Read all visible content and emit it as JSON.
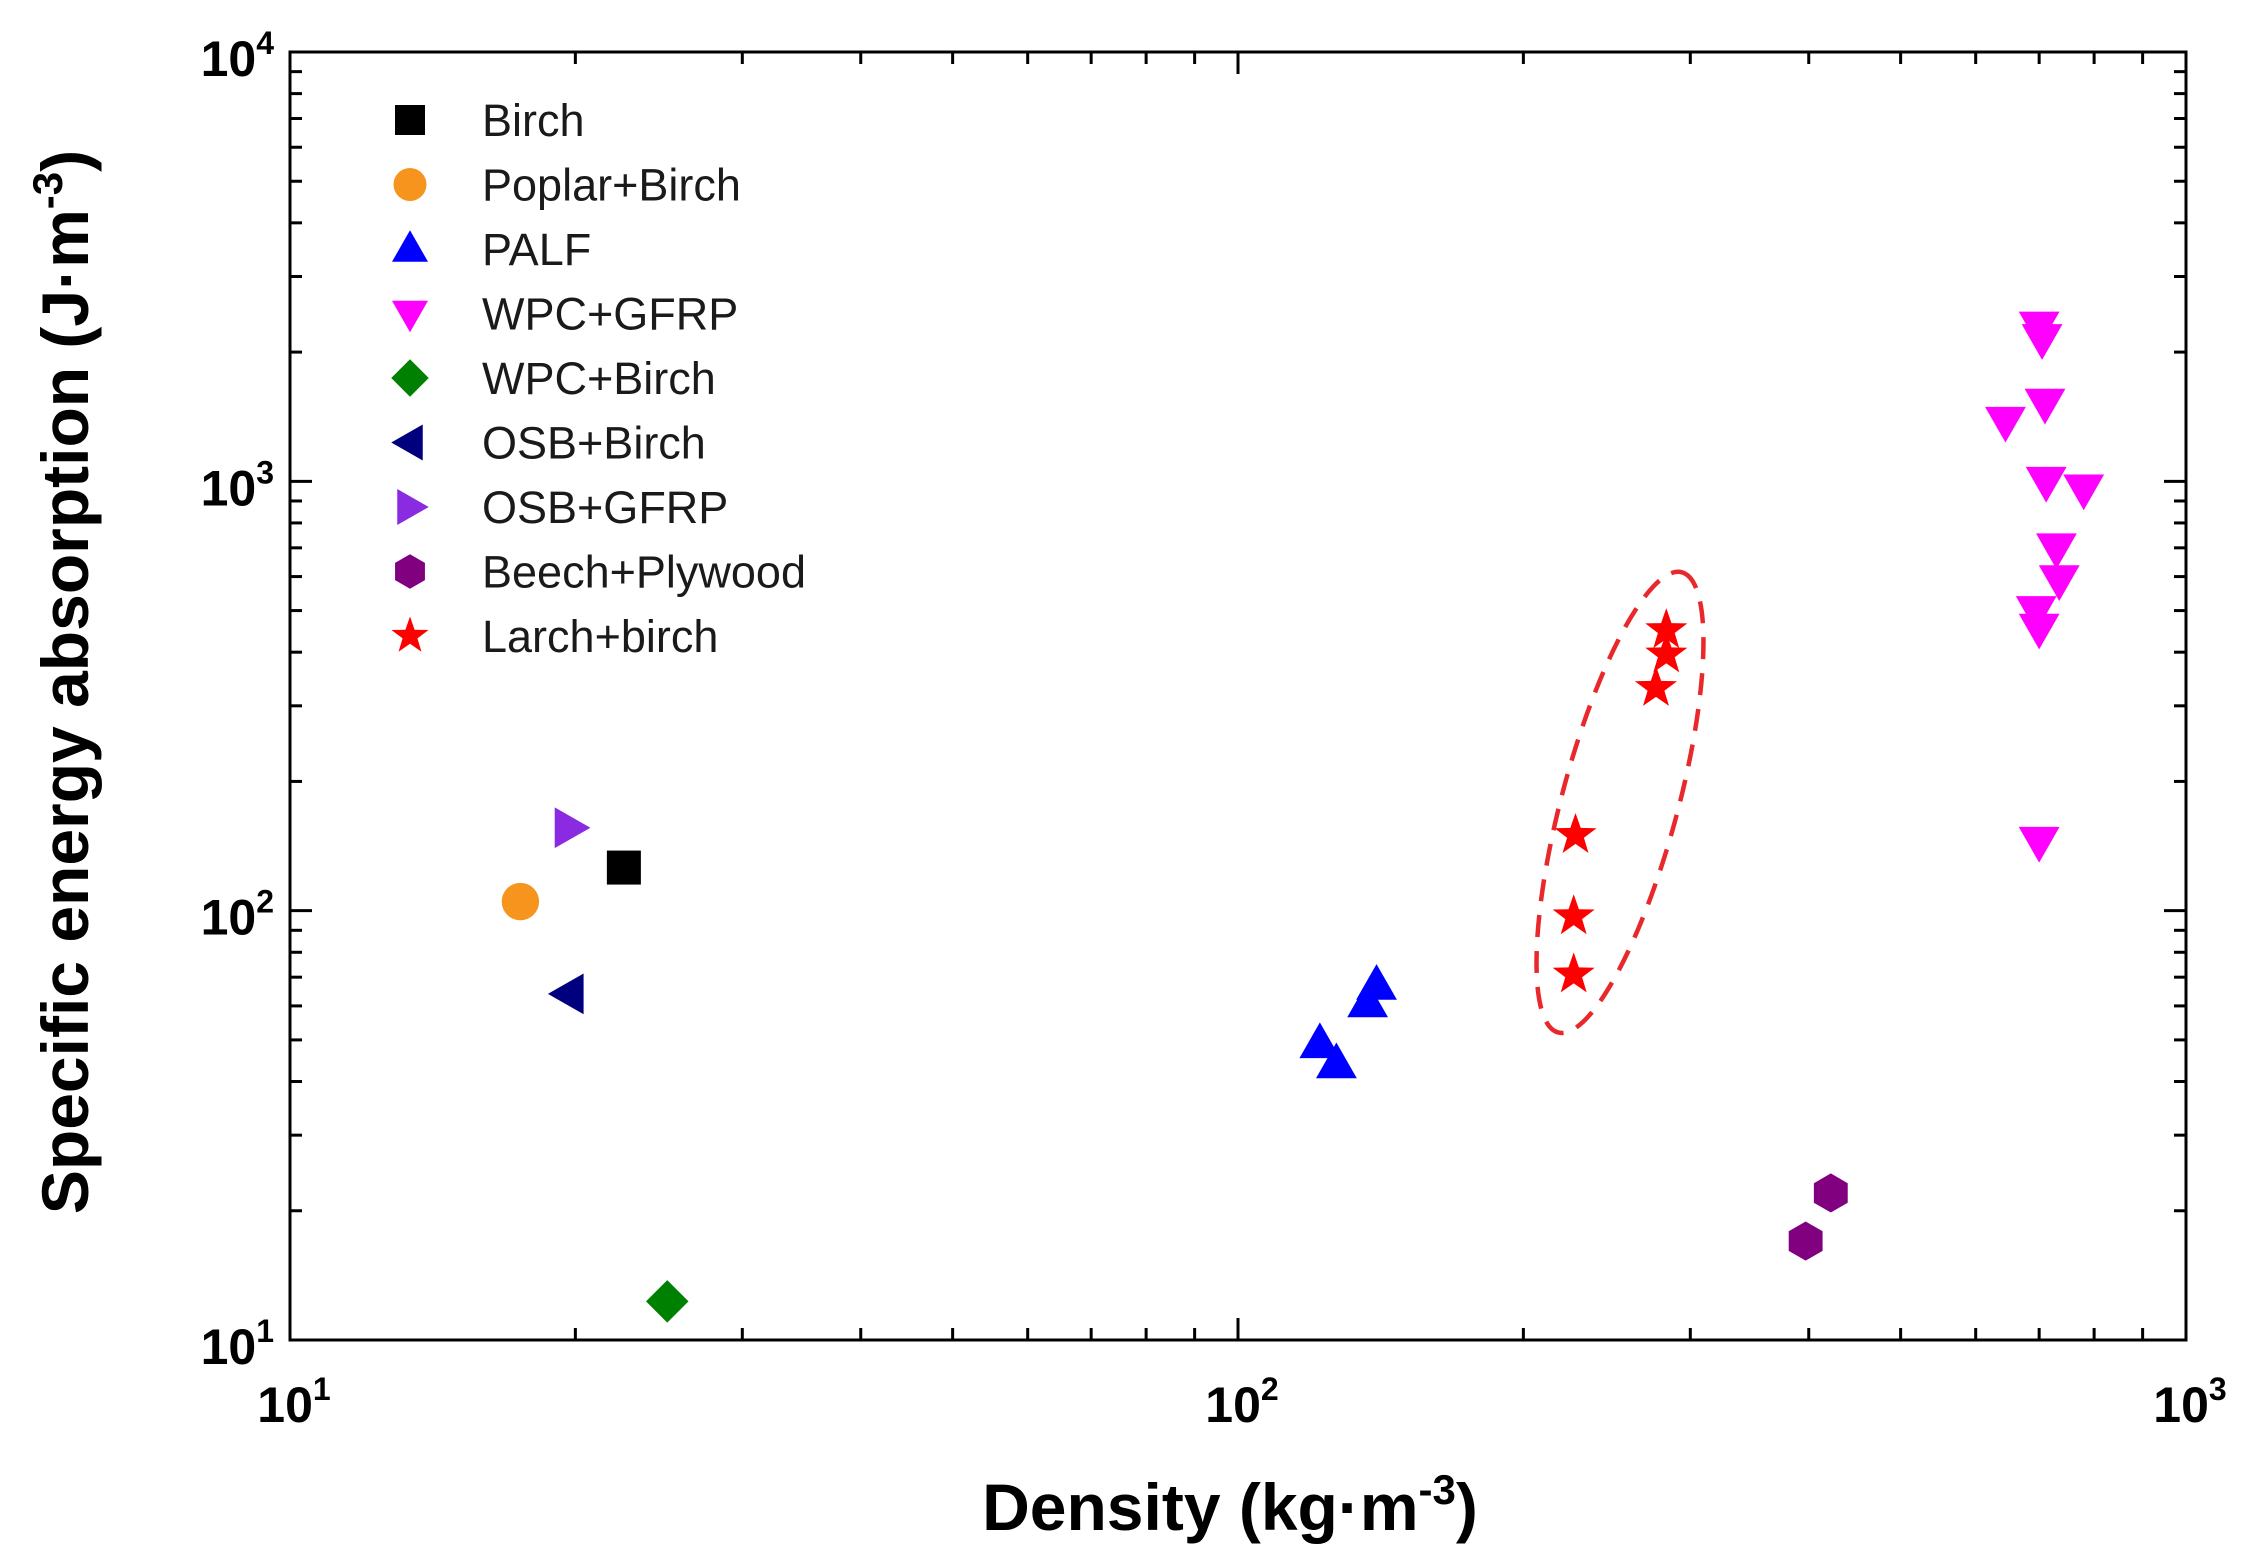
{
  "chart_data": {
    "type": "scatter",
    "xscale": "log",
    "yscale": "log",
    "xlim": [
      10,
      1000
    ],
    "ylim": [
      10,
      10000
    ],
    "xlabel": {
      "main": "Density (kg·m",
      "sup": "-3",
      "close": ")"
    },
    "ylabel": {
      "main": "Specific energy absorption (J·m",
      "sup": "-3",
      "close": ")"
    },
    "x_ticks": [
      {
        "value": 10,
        "base": "10",
        "exp": "1"
      },
      {
        "value": 100,
        "base": "10",
        "exp": "2"
      },
      {
        "value": 1000,
        "base": "10",
        "exp": "3"
      }
    ],
    "y_ticks": [
      {
        "value": 10,
        "base": "10",
        "exp": "1"
      },
      {
        "value": 100,
        "base": "10",
        "exp": "2"
      },
      {
        "value": 1000,
        "base": "10",
        "exp": "3"
      },
      {
        "value": 10000,
        "base": "10",
        "exp": "4"
      }
    ],
    "legend_position": "top-left",
    "series": [
      {
        "name": "Birch",
        "marker": "square",
        "color": "#000000",
        "points": [
          [
            22.5,
            126
          ]
        ]
      },
      {
        "name": "Poplar+Birch",
        "marker": "circle",
        "color": "#F7941D",
        "points": [
          [
            17.5,
            105
          ]
        ]
      },
      {
        "name": "PALF",
        "marker": "triangle-up",
        "color": "#0000FF",
        "points": [
          [
            122,
            49
          ],
          [
            127,
            44
          ],
          [
            137,
            61
          ],
          [
            140,
            67
          ]
        ]
      },
      {
        "name": "WPC+GFRP",
        "marker": "triangle-down",
        "color": "#FF00FF",
        "points": [
          [
            645,
            1380
          ],
          [
            700,
            2300
          ],
          [
            705,
            2150
          ],
          [
            710,
            1520
          ],
          [
            712,
            1000
          ],
          [
            730,
            700
          ],
          [
            735,
            590
          ],
          [
            695,
            500
          ],
          [
            700,
            455
          ],
          [
            780,
            960
          ],
          [
            700,
            145
          ]
        ]
      },
      {
        "name": "WPC+Birch",
        "marker": "diamond",
        "color": "#008000",
        "points": [
          [
            25,
            12.3
          ]
        ]
      },
      {
        "name": "OSB+Birch",
        "marker": "triangle-left",
        "color": "#00007F",
        "points": [
          [
            19.7,
            64
          ]
        ]
      },
      {
        "name": "OSB+GFRP",
        "marker": "triangle-right",
        "color": "#8A2BE2",
        "points": [
          [
            19.7,
            156
          ]
        ]
      },
      {
        "name": "Beech+Plywood",
        "marker": "hexagon",
        "color": "#800080",
        "points": [
          [
            397,
            17
          ],
          [
            422,
            22
          ]
        ]
      },
      {
        "name": "Larch+birch",
        "marker": "star",
        "color": "#FF0000",
        "points": [
          [
            227,
            150
          ],
          [
            226,
            97
          ],
          [
            226,
            71
          ],
          [
            276,
            330
          ],
          [
            283,
            395
          ],
          [
            283,
            450
          ]
        ]
      }
    ],
    "annotations": [
      {
        "type": "dashed-ellipse",
        "color": "#E8282B",
        "around_series": "Larch+birch"
      }
    ]
  }
}
